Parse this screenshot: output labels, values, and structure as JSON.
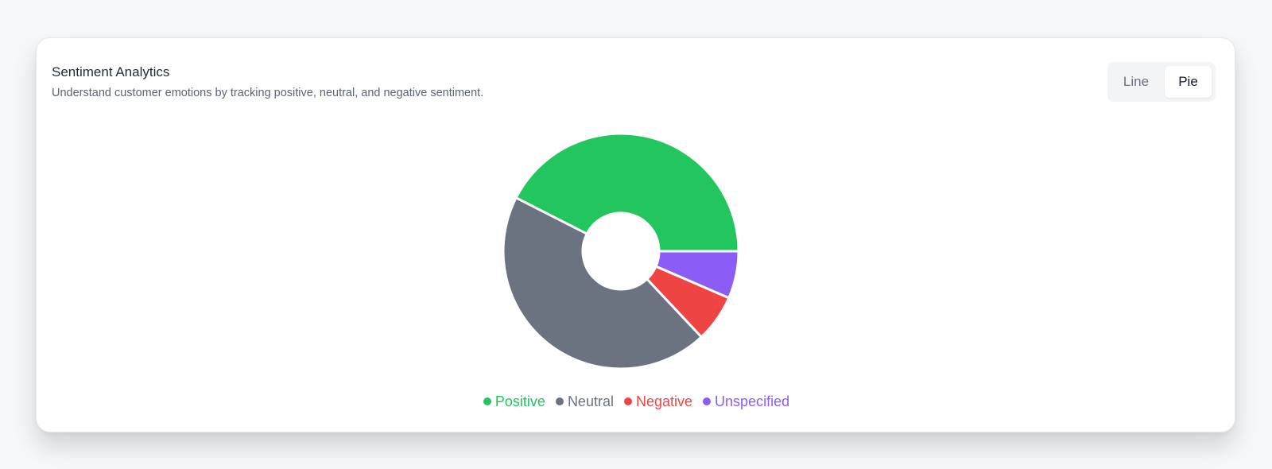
{
  "card": {
    "title": "Sentiment Analytics",
    "subtitle": "Understand customer emotions by tracking positive, neutral, and negative sentiment."
  },
  "toggle": {
    "options": [
      "Line",
      "Pie"
    ],
    "selected": "Pie"
  },
  "chart_data": {
    "type": "pie",
    "donut": true,
    "categories": [
      "Positive",
      "Neutral",
      "Negative",
      "Unspecified"
    ],
    "values": [
      42.5,
      44.5,
      6.5,
      6.5
    ],
    "unit": "%",
    "colors": [
      "#22c55e",
      "#6b7280",
      "#ef4444",
      "#8b5cf6"
    ],
    "legend": "bottom-center"
  }
}
